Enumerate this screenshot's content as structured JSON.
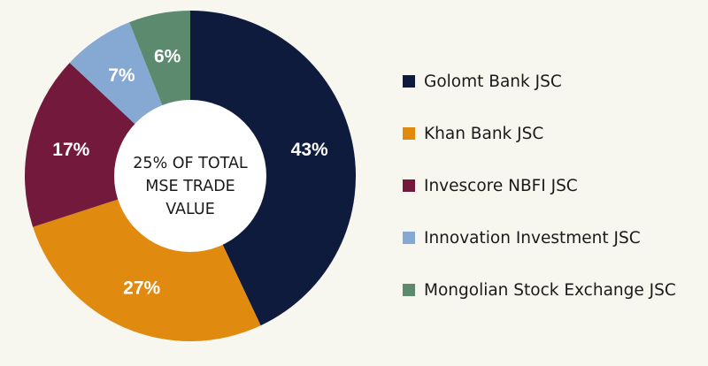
{
  "chart_data": {
    "type": "pie",
    "donut": true,
    "center_text": [
      "25% OF TOTAL",
      "MSE TRADE",
      "VALUE"
    ],
    "slices": [
      {
        "name": "Golomt Bank JSC",
        "value": 43,
        "label": "43%",
        "color": "#0f1b3d"
      },
      {
        "name": "Khan Bank JSC",
        "value": 27,
        "label": "27%",
        "color": "#e08b0f"
      },
      {
        "name": "Invescore NBFI JSC",
        "value": 17,
        "label": "17%",
        "color": "#731a3c"
      },
      {
        "name": "Innovation Investment JSC",
        "value": 7,
        "label": "7%",
        "color": "#86a9d4"
      },
      {
        "name": "Mongolian Stock Exchange JSC",
        "value": 6,
        "label": "6%",
        "color": "#5c8a6e"
      }
    ],
    "legend_position": "right"
  }
}
